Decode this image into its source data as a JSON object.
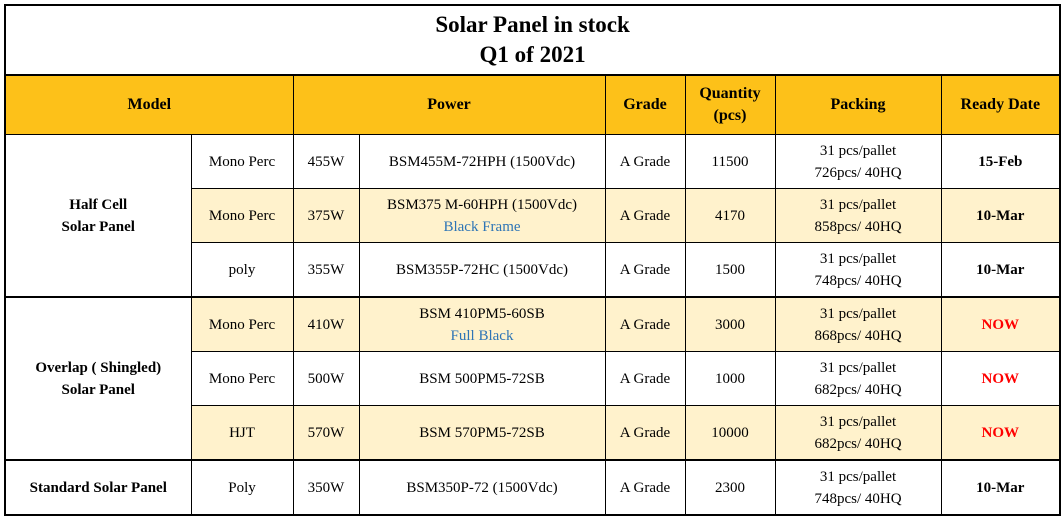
{
  "title_line1": "Solar Panel in stock",
  "title_line2": "Q1 of 2021",
  "headers": {
    "model": "Model",
    "power": "Power",
    "grade": "Grade",
    "quantity_line1": "Quantity",
    "quantity_line2": "(pcs)",
    "packing": "Packing",
    "ready_date": "Ready Date"
  },
  "groups": [
    {
      "name_line1": "Half Cell",
      "name_line2": "Solar Panel",
      "rows": [
        {
          "type": "Mono Perc",
          "watt": "455W",
          "model": "BSM455M-72HPH (1500Vdc)",
          "note": "",
          "grade": "A Grade",
          "qty": "11500",
          "pack1": "31 pcs/pallet",
          "pack2": "726pcs/ 40HQ",
          "date": "15-Feb"
        },
        {
          "type": "Mono Perc",
          "watt": "375W",
          "model": "BSM375 M-60HPH (1500Vdc)",
          "note": "Black Frame",
          "grade": "A Grade",
          "qty": "4170",
          "pack1": "31 pcs/pallet",
          "pack2": "858pcs/ 40HQ",
          "date": "10-Mar"
        },
        {
          "type": "poly",
          "watt": "355W",
          "model": "BSM355P-72HC (1500Vdc)",
          "note": "",
          "grade": "A Grade",
          "qty": "1500",
          "pack1": "31 pcs/pallet",
          "pack2": "748pcs/ 40HQ",
          "date": "10-Mar"
        }
      ]
    },
    {
      "name_line1": "Overlap ( Shingled)",
      "name_line2": "Solar Panel",
      "rows": [
        {
          "type": "Mono Perc",
          "watt": "410W",
          "model": "BSM 410PM5-60SB",
          "note": "Full Black",
          "grade": "A Grade",
          "qty": "3000",
          "pack1": "31 pcs/pallet",
          "pack2": "868pcs/ 40HQ",
          "date": "NOW"
        },
        {
          "type": "Mono Perc",
          "watt": "500W",
          "model": "BSM 500PM5-72SB",
          "note": "",
          "grade": "A Grade",
          "qty": "1000",
          "pack1": "31 pcs/pallet",
          "pack2": "682pcs/ 40HQ",
          "date": "NOW"
        },
        {
          "type": "HJT",
          "watt": "570W",
          "model": "BSM 570PM5-72SB",
          "note": "",
          "grade": "A Grade",
          "qty": "10000",
          "pack1": "31 pcs/pallet",
          "pack2": "682pcs/ 40HQ",
          "date": "NOW"
        }
      ]
    },
    {
      "name_line1": "Standard Solar Panel",
      "name_line2": "",
      "rows": [
        {
          "type": "Poly",
          "watt": "350W",
          "model": "BSM350P-72 (1500Vdc)",
          "note": "",
          "grade": "A Grade",
          "qty": "2300",
          "pack1": "31 pcs/pallet",
          "pack2": "748pcs/ 40HQ",
          "date": "10-Mar"
        }
      ]
    }
  ],
  "colors": {
    "header_bg": "#fdc119",
    "shade_bg": "#fff2cc",
    "note_text": "#2e75b6",
    "now_text": "#ff0000"
  }
}
